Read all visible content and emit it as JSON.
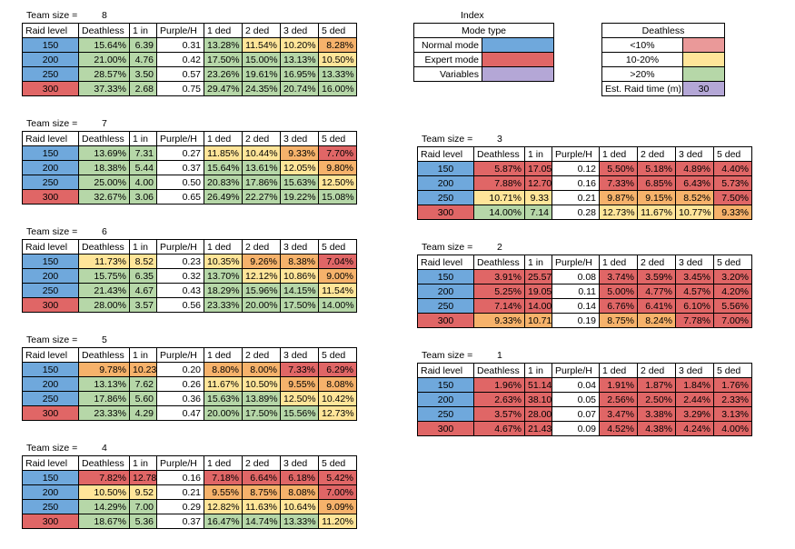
{
  "labels": {
    "team_size": "Team size =",
    "headers": [
      "Raid level",
      "Deathless",
      "1 in",
      "Purple/H",
      "1 ded",
      "2 ded",
      "3 ded",
      "5 ded"
    ]
  },
  "index": {
    "title": "Index",
    "mode_header": "Mode type",
    "modes": [
      {
        "label": "Normal mode",
        "color": "#6fa8dc"
      },
      {
        "label": "Expert mode",
        "color": "#e06666"
      },
      {
        "label": "Variables",
        "color": "#b4a7d6"
      }
    ],
    "deathless_header": "Deathless",
    "thresholds": [
      {
        "label": "<10%",
        "color": "#ea9999"
      },
      {
        "label": "10-20%",
        "color": "#ffe599"
      },
      {
        "label": ">20%",
        "color": "#b6d7a8"
      }
    ],
    "raid_time_label": "Est. Raid time (m)",
    "raid_time_value": "30"
  },
  "tables": [
    {
      "team_size": "8",
      "rows": [
        [
          "150",
          "15.64%",
          "6.39",
          "0.31",
          "13.28%",
          "11.54%",
          "10.20%",
          "8.28%"
        ],
        [
          "200",
          "21.00%",
          "4.76",
          "0.42",
          "17.50%",
          "15.00%",
          "13.13%",
          "10.50%"
        ],
        [
          "250",
          "28.57%",
          "3.50",
          "0.57",
          "23.26%",
          "19.61%",
          "16.95%",
          "13.33%"
        ],
        [
          "300",
          "37.33%",
          "2.68",
          "0.75",
          "29.47%",
          "24.35%",
          "20.74%",
          "16.00%"
        ]
      ]
    },
    {
      "team_size": "7",
      "rows": [
        [
          "150",
          "13.69%",
          "7.31",
          "0.27",
          "11.85%",
          "10.44%",
          "9.33%",
          "7.70%"
        ],
        [
          "200",
          "18.38%",
          "5.44",
          "0.37",
          "15.64%",
          "13.61%",
          "12.05%",
          "9.80%"
        ],
        [
          "250",
          "25.00%",
          "4.00",
          "0.50",
          "20.83%",
          "17.86%",
          "15.63%",
          "12.50%"
        ],
        [
          "300",
          "32.67%",
          "3.06",
          "0.65",
          "26.49%",
          "22.27%",
          "19.22%",
          "15.08%"
        ]
      ]
    },
    {
      "team_size": "6",
      "rows": [
        [
          "150",
          "11.73%",
          "8.52",
          "0.23",
          "10.35%",
          "9.26%",
          "8.38%",
          "7.04%"
        ],
        [
          "200",
          "15.75%",
          "6.35",
          "0.32",
          "13.70%",
          "12.12%",
          "10.86%",
          "9.00%"
        ],
        [
          "250",
          "21.43%",
          "4.67",
          "0.43",
          "18.29%",
          "15.96%",
          "14.15%",
          "11.54%"
        ],
        [
          "300",
          "28.00%",
          "3.57",
          "0.56",
          "23.33%",
          "20.00%",
          "17.50%",
          "14.00%"
        ]
      ]
    },
    {
      "team_size": "5",
      "rows": [
        [
          "150",
          "9.78%",
          "10.23",
          "0.20",
          "8.80%",
          "8.00%",
          "7.33%",
          "6.29%"
        ],
        [
          "200",
          "13.13%",
          "7.62",
          "0.26",
          "11.67%",
          "10.50%",
          "9.55%",
          "8.08%"
        ],
        [
          "250",
          "17.86%",
          "5.60",
          "0.36",
          "15.63%",
          "13.89%",
          "12.50%",
          "10.42%"
        ],
        [
          "300",
          "23.33%",
          "4.29",
          "0.47",
          "20.00%",
          "17.50%",
          "15.56%",
          "12.73%"
        ]
      ]
    },
    {
      "team_size": "4",
      "rows": [
        [
          "150",
          "7.82%",
          "12.78",
          "0.16",
          "7.18%",
          "6.64%",
          "6.18%",
          "5.42%"
        ],
        [
          "200",
          "10.50%",
          "9.52",
          "0.21",
          "9.55%",
          "8.75%",
          "8.08%",
          "7.00%"
        ],
        [
          "250",
          "14.29%",
          "7.00",
          "0.29",
          "12.82%",
          "11.63%",
          "10.64%",
          "9.09%"
        ],
        [
          "300",
          "18.67%",
          "5.36",
          "0.37",
          "16.47%",
          "14.74%",
          "13.33%",
          "11.20%"
        ]
      ]
    },
    {
      "team_size": "3",
      "rows": [
        [
          "150",
          "5.87%",
          "17.05",
          "0.12",
          "5.50%",
          "5.18%",
          "4.89%",
          "4.40%"
        ],
        [
          "200",
          "7.88%",
          "12.70",
          "0.16",
          "7.33%",
          "6.85%",
          "6.43%",
          "5.73%"
        ],
        [
          "250",
          "10.71%",
          "9.33",
          "0.21",
          "9.87%",
          "9.15%",
          "8.52%",
          "7.50%"
        ],
        [
          "300",
          "14.00%",
          "7.14",
          "0.28",
          "12.73%",
          "11.67%",
          "10.77%",
          "9.33%"
        ]
      ]
    },
    {
      "team_size": "2",
      "rows": [
        [
          "150",
          "3.91%",
          "25.57",
          "0.08",
          "3.74%",
          "3.59%",
          "3.45%",
          "3.20%"
        ],
        [
          "200",
          "5.25%",
          "19.05",
          "0.11",
          "5.00%",
          "4.77%",
          "4.57%",
          "4.20%"
        ],
        [
          "250",
          "7.14%",
          "14.00",
          "0.14",
          "6.76%",
          "6.41%",
          "6.10%",
          "5.56%"
        ],
        [
          "300",
          "9.33%",
          "10.71",
          "0.19",
          "8.75%",
          "8.24%",
          "7.78%",
          "7.00%"
        ]
      ]
    },
    {
      "team_size": "1",
      "rows": [
        [
          "150",
          "1.96%",
          "51.14",
          "0.04",
          "1.91%",
          "1.87%",
          "1.84%",
          "1.76%"
        ],
        [
          "200",
          "2.63%",
          "38.10",
          "0.05",
          "2.56%",
          "2.50%",
          "2.44%",
          "2.33%"
        ],
        [
          "250",
          "3.57%",
          "28.00",
          "0.07",
          "3.47%",
          "3.38%",
          "3.29%",
          "3.13%"
        ],
        [
          "300",
          "4.67%",
          "21.43",
          "0.09",
          "4.52%",
          "4.38%",
          "4.24%",
          "4.00%"
        ]
      ]
    }
  ]
}
